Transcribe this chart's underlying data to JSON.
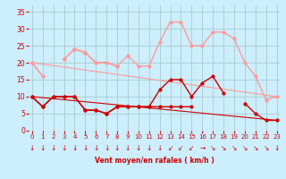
{
  "x": [
    0,
    1,
    2,
    3,
    4,
    5,
    6,
    7,
    8,
    9,
    10,
    11,
    12,
    13,
    14,
    15,
    16,
    17,
    18,
    19,
    20,
    21,
    22,
    23
  ],
  "background_color": "#cceeff",
  "grid_color": "#aacccc",
  "light_red": "#ff9999",
  "mid_red": "#ff6666",
  "dark_red": "#cc0000",
  "ylim": [
    0,
    37
  ],
  "xlim": [
    -0.3,
    23.3
  ],
  "xlabel": "Vent moyen/en rafales ( km/h )",
  "yticks": [
    0,
    5,
    10,
    15,
    20,
    25,
    30,
    35
  ],
  "xticks": [
    0,
    1,
    2,
    3,
    4,
    5,
    6,
    7,
    8,
    9,
    10,
    11,
    12,
    13,
    14,
    15,
    16,
    17,
    18,
    19,
    20,
    21,
    22,
    23
  ],
  "lines_light": [
    [
      20,
      16,
      null,
      21,
      24,
      23,
      20,
      20,
      19,
      22,
      19,
      19,
      26,
      32,
      32,
      25,
      25,
      29,
      29,
      27,
      20,
      16,
      9,
      10
    ],
    [
      20,
      16,
      null,
      21,
      24,
      23,
      20,
      20,
      19,
      null,
      null,
      null,
      null,
      null,
      null,
      null,
      null,
      null,
      null,
      null,
      null,
      null,
      null,
      null
    ]
  ],
  "lines_dark": [
    [
      10,
      7,
      10,
      10,
      10,
      6,
      6,
      5,
      7,
      7,
      7,
      7,
      12,
      15,
      15,
      10,
      14,
      16,
      11,
      null,
      8,
      5,
      3,
      3
    ],
    [
      10,
      7,
      10,
      10,
      10,
      6,
      6,
      5,
      7,
      7,
      7,
      7,
      7,
      7,
      7,
      7,
      null,
      null,
      null,
      null,
      null,
      null,
      null,
      null
    ]
  ],
  "line_light_trend": [
    [
      0,
      20
    ],
    [
      23,
      10
    ]
  ],
  "line_dark_trend": [
    [
      0,
      10
    ],
    [
      23,
      3
    ]
  ],
  "arrows": [
    "↓",
    "↓",
    "↓",
    "↓",
    "↓",
    "↓",
    "↓",
    "↓",
    "↓",
    "↓",
    "↓",
    "↓",
    "↓",
    "↙",
    "↙",
    "↙",
    "→",
    "↘",
    "↘",
    "↘",
    "↘",
    "↘",
    "↘",
    "↓"
  ]
}
